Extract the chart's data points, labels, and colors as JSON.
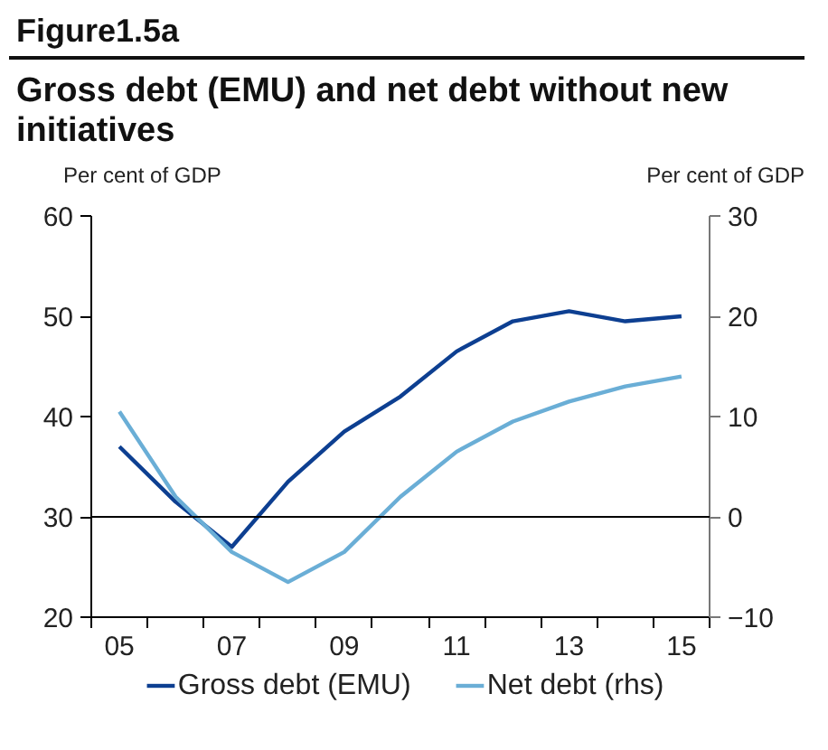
{
  "chart_data": {
    "type": "line",
    "title": "Gross debt (EMU) and net debt without new initiatives",
    "annotations": [
      "Figure1.5a"
    ],
    "ylabel": "Per cent of GDP",
    "y2label": "Per cent of GDP",
    "x": [
      2005,
      2006,
      2007,
      2008,
      2009,
      2010,
      2011,
      2012,
      2013,
      2014,
      2015
    ],
    "xlim": [
      2004.5,
      2015.5
    ],
    "xticks": [
      {
        "value": 2004.5,
        "label": null
      },
      {
        "value": 2005,
        "label": "05"
      },
      {
        "value": 2005.5,
        "label": null
      },
      {
        "value": 2006.5,
        "label": null
      },
      {
        "value": 2007,
        "label": "07"
      },
      {
        "value": 2007.5,
        "label": null
      },
      {
        "value": 2008.5,
        "label": null
      },
      {
        "value": 2009,
        "label": "09"
      },
      {
        "value": 2009.5,
        "label": null
      },
      {
        "value": 2010.5,
        "label": null
      },
      {
        "value": 2011,
        "label": "11"
      },
      {
        "value": 2011.5,
        "label": null
      },
      {
        "value": 2012.5,
        "label": null
      },
      {
        "value": 2013,
        "label": "13"
      },
      {
        "value": 2013.5,
        "label": null
      },
      {
        "value": 2014.5,
        "label": null
      },
      {
        "value": 2015,
        "label": "15"
      },
      {
        "value": 2015.5,
        "label": null
      }
    ],
    "ylim": [
      20,
      60
    ],
    "yticks": [
      20,
      30,
      40,
      50,
      60
    ],
    "y2lim": [
      -10,
      30
    ],
    "y2ticks": [
      -10,
      0,
      10,
      20,
      30
    ],
    "series": [
      {
        "name": "Gross debt (EMU)",
        "color": "#0d3f91",
        "values": [
          37,
          31.5,
          27,
          33.5,
          38.5,
          42,
          46.5,
          49.5,
          50.5,
          49.5,
          50
        ]
      },
      {
        "name": "Net debt (rhs)",
        "color": "#6aaed6",
        "axis": "y2",
        "values": [
          10.5,
          2,
          -3.5,
          -6.5,
          -3.5,
          2,
          6.5,
          9.5,
          11.5,
          13,
          14
        ]
      }
    ],
    "ref_lines": [
      {
        "axis": "y",
        "value": 30,
        "color": "#000000"
      }
    ],
    "grid": false,
    "legend": "bottom",
    "marker": "none",
    "line_style": "solid"
  }
}
